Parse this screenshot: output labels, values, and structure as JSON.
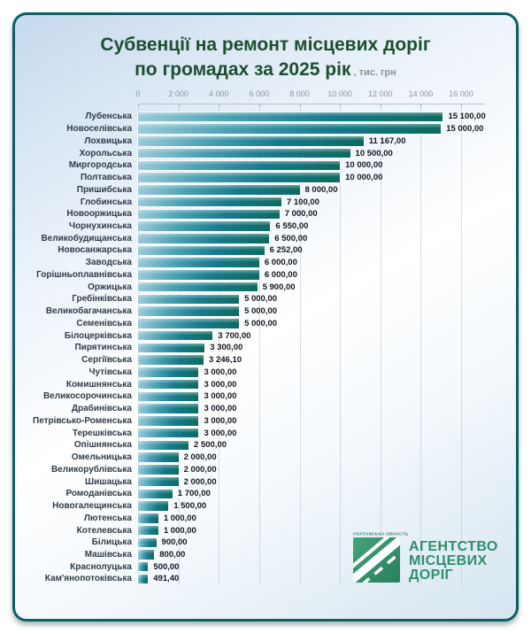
{
  "title": {
    "line1": "Субвенції на ремонт місцевих доріг",
    "line2": "по громадах за 2025 рік",
    "suffix": ", тис. грн"
  },
  "chart_data": {
    "type": "bar",
    "orientation": "horizontal",
    "title": "Субвенції на ремонт місцевих доріг по громадах за 2025 рік, тис. грн",
    "xlabel": "",
    "ylabel": "",
    "xlim": [
      0,
      16000
    ],
    "grid": true,
    "axis_ticks": [
      "0",
      "2 000",
      "4 000",
      "6 000",
      "8 000",
      "10 000",
      "12 000",
      "14 000",
      "16 000"
    ],
    "categories": [
      "Лубенська",
      "Новоселівська",
      "Лохвицька",
      "Хорольська",
      "Миргородська",
      "Полтавська",
      "Пришибська",
      "Глобинська",
      "Новооржицька",
      "Чорнухинська",
      "Великобудищанська",
      "Новосанжарська",
      "Заводська",
      "Горішньоплавнівська",
      "Оржицька",
      "Гребінківська",
      "Великобагачанська",
      "Семенівська",
      "Білоцерківська",
      "Пирятинська",
      "Сергіївська",
      "Чутівська",
      "Комишнянська",
      "Великосорочинська",
      "Драбинівська",
      "Петрівсько-Роменська",
      "Терешківська",
      "Опішнянська",
      "Омельницька",
      "Великорублівська",
      "Шишацька",
      "Ромоданівська",
      "Новогалещинська",
      "Лютенська",
      "Котелевська",
      "Білицька",
      "Машівська",
      "Краснолуцька",
      "Кам'янопотоківська"
    ],
    "values": [
      15100,
      15000,
      11167,
      10500,
      10000,
      10000,
      8000,
      7100,
      7000,
      6550,
      6500,
      6252,
      6000,
      6000,
      5900,
      5000,
      5000,
      5000,
      3700,
      3300,
      3246.1,
      3000,
      3000,
      3000,
      3000,
      3000,
      3000,
      2500,
      2000,
      2000,
      2000,
      1700,
      1500,
      1000,
      1000,
      900,
      800,
      500,
      491.4
    ],
    "value_labels": [
      "15 100,00",
      "15 000,00",
      "11 167,00",
      "10 500,00",
      "10 000,00",
      "10 000,00",
      "8 000,00",
      "7 100,00",
      "7 000,00",
      "6 550,00",
      "6 500,00",
      "6 252,00",
      "6 000,00",
      "6 000,00",
      "5 900,00",
      "5 000,00",
      "5 000,00",
      "5 000,00",
      "3 700,00",
      "3 300,00",
      "3 246,10",
      "3 000,00",
      "3 000,00",
      "3 000,00",
      "3 000,00",
      "3 000,00",
      "3 000,00",
      "2 500,00",
      "2 000,00",
      "2 000,00",
      "2 000,00",
      "1 700,00",
      "1 500,00",
      "1 000,00",
      "1 000,00",
      "900,00",
      "800,00",
      "500,00",
      "491,40"
    ]
  },
  "logo": {
    "region": "ПОЛТАВСЬКА ОБЛАСТЬ",
    "line1": "АГЕНТСТВО",
    "line2": "МІСЦЕВИХ",
    "line3": "ДОРІГ"
  },
  "colors": {
    "title_green": "#1d4f2f",
    "card_border": "#0d5f66",
    "bar_gradient_start": "#9ccad9",
    "bar_gradient_mid": "#177a8c",
    "bar_gradient_end": "#0d6a60",
    "logo_green": "#2e8f6b",
    "category_label": "#2e3b47",
    "value_label": "#15161f",
    "axis_label": "#8f969c"
  }
}
